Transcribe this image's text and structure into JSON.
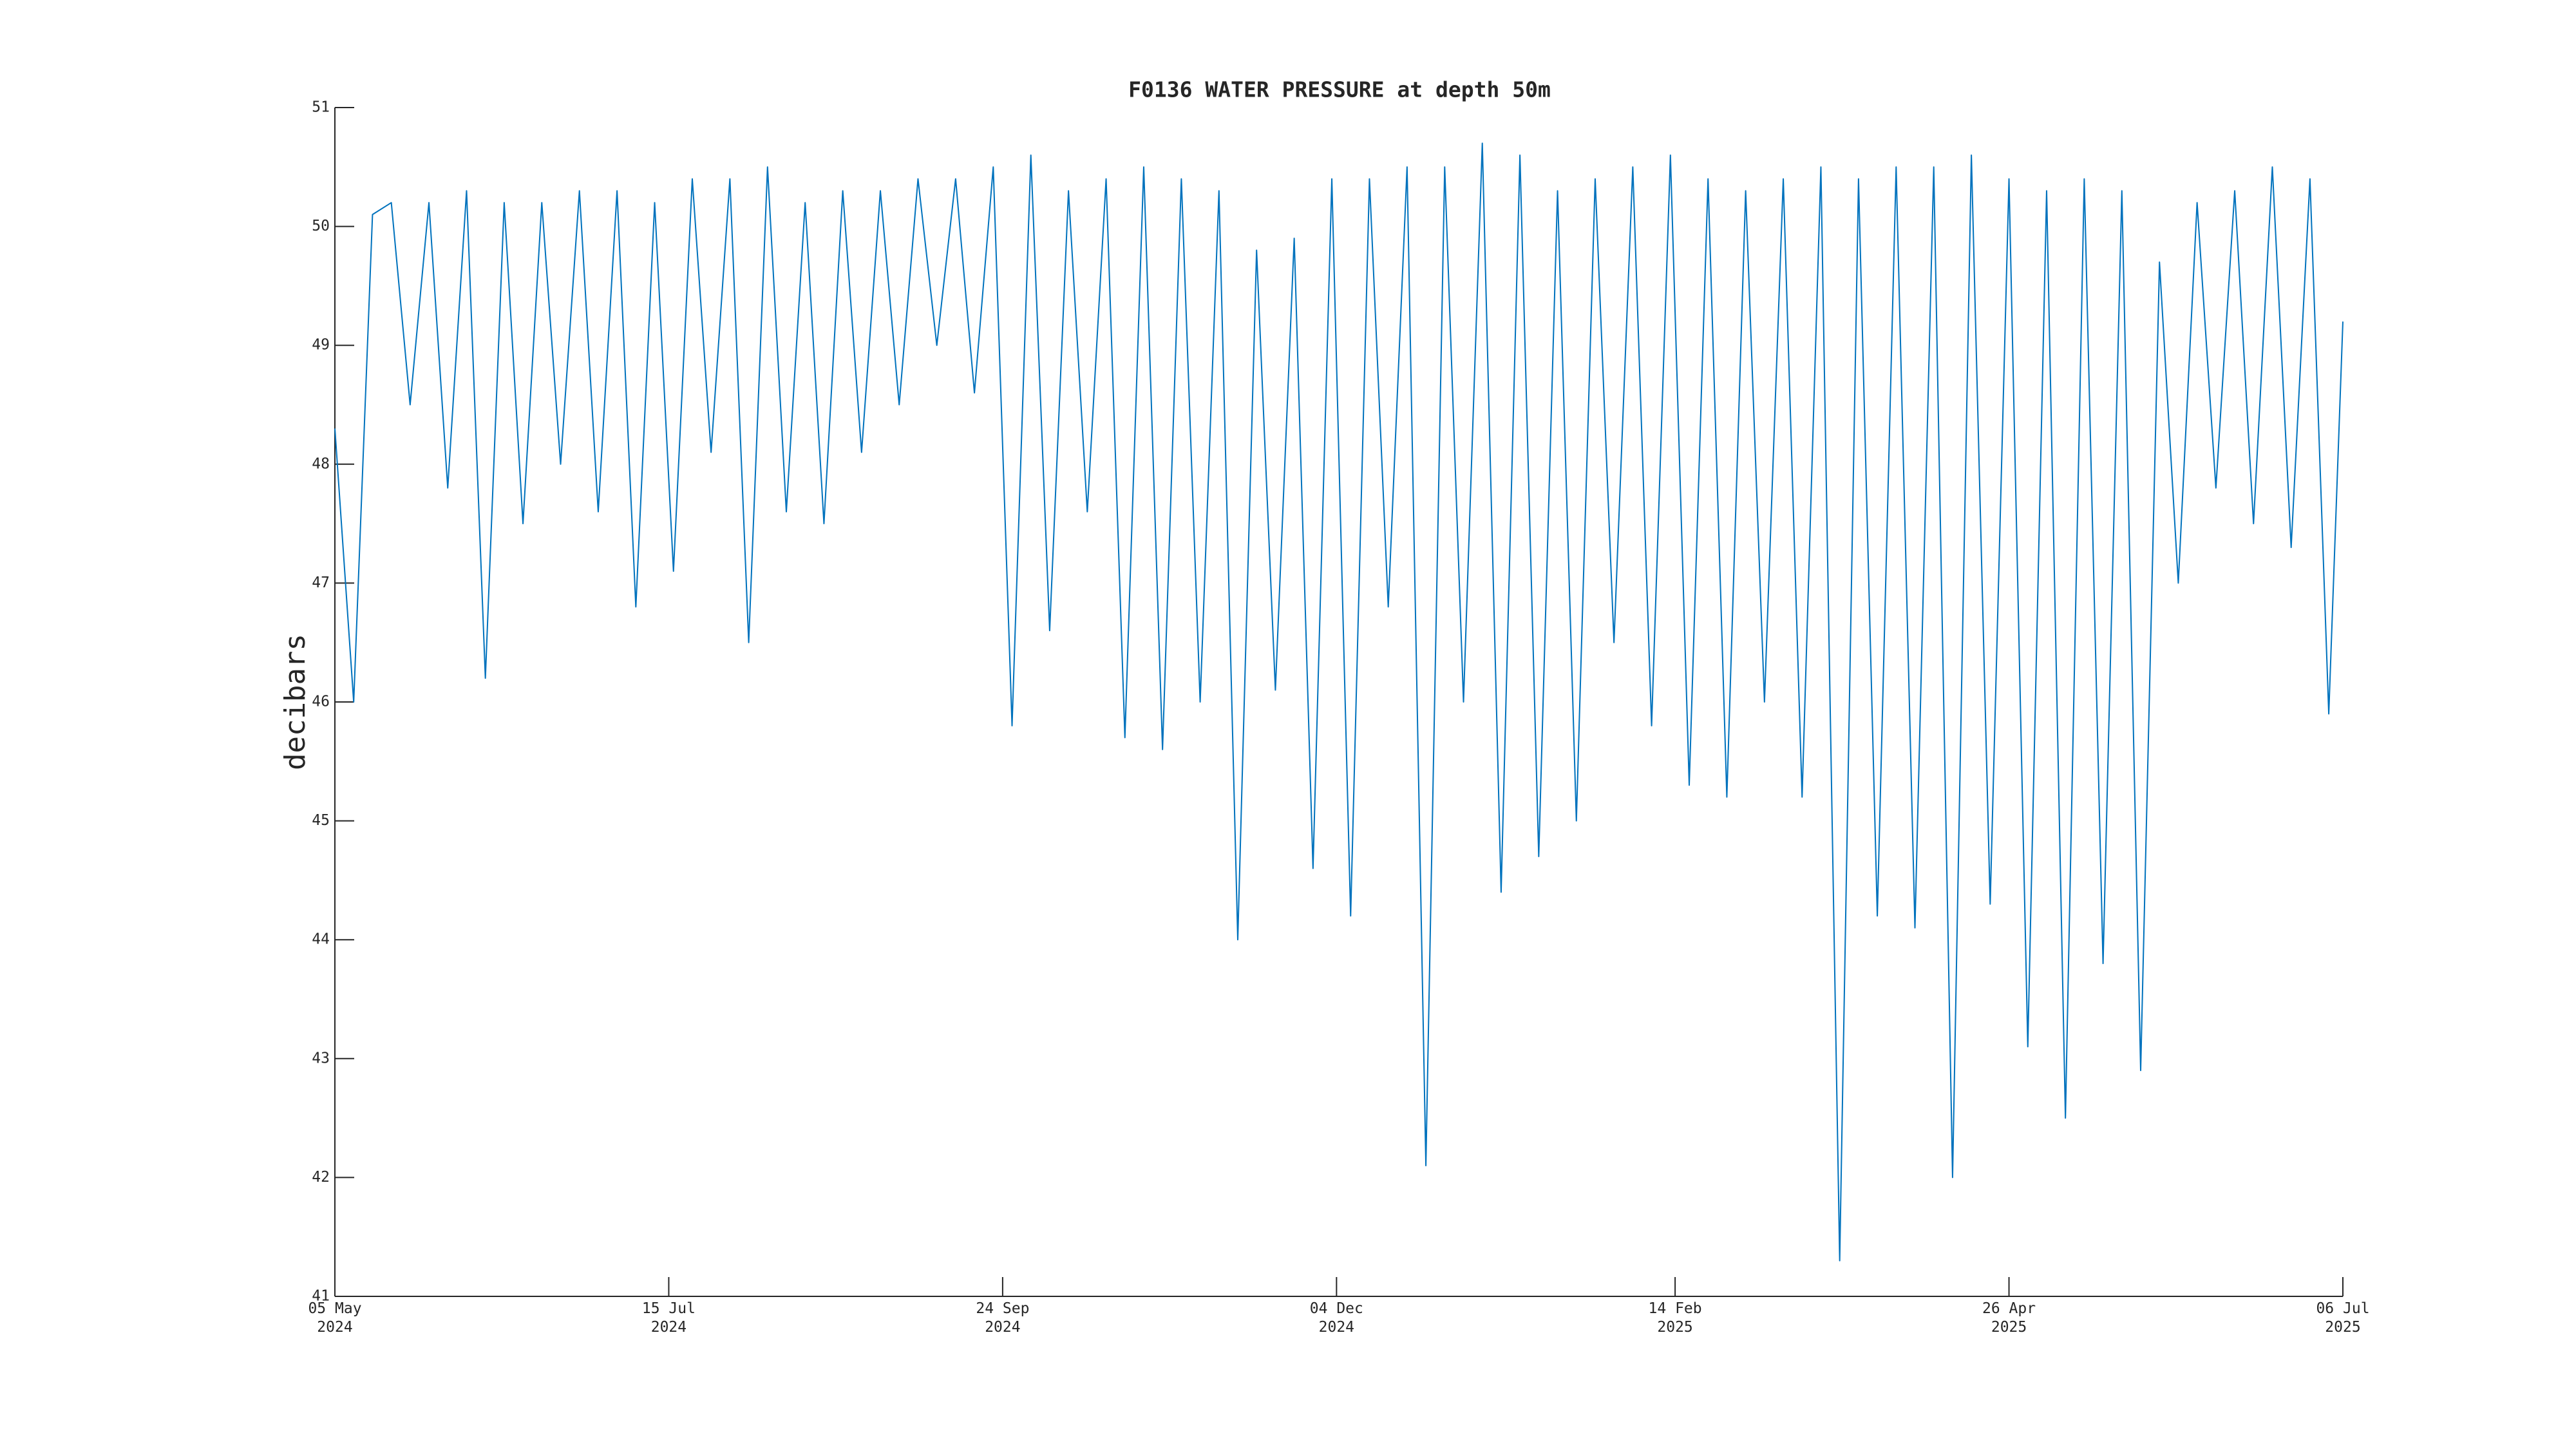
{
  "chart_data": {
    "type": "line",
    "title": "F0136 WATER PRESSURE at depth 50m",
    "ylabel": "decibars",
    "x": [
      "2024-05-05",
      "2024-05-09",
      "2024-05-13",
      "2024-05-17",
      "2024-05-21",
      "2024-05-25",
      "2024-05-29",
      "2024-06-02",
      "2024-06-06",
      "2024-06-10",
      "2024-06-14",
      "2024-06-18",
      "2024-06-22",
      "2024-06-26",
      "2024-06-30",
      "2024-07-04",
      "2024-07-08",
      "2024-07-12",
      "2024-07-16",
      "2024-07-20",
      "2024-07-24",
      "2024-07-28",
      "2024-08-01",
      "2024-08-05",
      "2024-08-09",
      "2024-08-13",
      "2024-08-17",
      "2024-08-21",
      "2024-08-25",
      "2024-08-29",
      "2024-09-02",
      "2024-09-06",
      "2024-09-10",
      "2024-09-14",
      "2024-09-18",
      "2024-09-22",
      "2024-09-26",
      "2024-09-30",
      "2024-10-04",
      "2024-10-08",
      "2024-10-12",
      "2024-10-16",
      "2024-10-20",
      "2024-10-24",
      "2024-10-28",
      "2024-11-01",
      "2024-11-05",
      "2024-11-09",
      "2024-11-13",
      "2024-11-17",
      "2024-11-21",
      "2024-11-25",
      "2024-11-29",
      "2024-12-03",
      "2024-12-07",
      "2024-12-11",
      "2024-12-15",
      "2024-12-19",
      "2024-12-23",
      "2024-12-27",
      "2024-12-31",
      "2025-01-04",
      "2025-01-08",
      "2025-01-12",
      "2025-01-16",
      "2025-01-20",
      "2025-01-24",
      "2025-01-28",
      "2025-02-01",
      "2025-02-05",
      "2025-02-09",
      "2025-02-13",
      "2025-02-17",
      "2025-02-21",
      "2025-02-25",
      "2025-03-01",
      "2025-03-05",
      "2025-03-09",
      "2025-03-13",
      "2025-03-17",
      "2025-03-21",
      "2025-03-25",
      "2025-03-29",
      "2025-04-02",
      "2025-04-06",
      "2025-04-10",
      "2025-04-14",
      "2025-04-18",
      "2025-04-22",
      "2025-04-26",
      "2025-04-30",
      "2025-05-04",
      "2025-05-08",
      "2025-05-12",
      "2025-05-16",
      "2025-05-20",
      "2025-05-24",
      "2025-05-28",
      "2025-06-01",
      "2025-06-05",
      "2025-06-09",
      "2025-06-13",
      "2025-06-17",
      "2025-06-21",
      "2025-06-25",
      "2025-06-29",
      "2025-07-03",
      "2025-07-06"
    ],
    "series": [
      {
        "name": "water pressure",
        "color": "#0072bd",
        "values": [
          48.3,
          46.0,
          50.1,
          50.2,
          48.5,
          50.2,
          47.8,
          50.3,
          46.2,
          50.2,
          47.5,
          50.2,
          48.0,
          50.3,
          47.6,
          50.3,
          46.8,
          50.2,
          47.1,
          50.4,
          48.1,
          50.4,
          46.5,
          50.5,
          47.6,
          50.2,
          47.5,
          50.3,
          48.1,
          50.3,
          48.5,
          50.4,
          49.0,
          50.4,
          48.6,
          50.5,
          45.8,
          50.6,
          46.6,
          50.3,
          47.6,
          50.4,
          45.7,
          50.5,
          45.6,
          50.4,
          46.0,
          50.3,
          44.0,
          49.8,
          46.1,
          49.9,
          44.6,
          50.4,
          44.2,
          50.4,
          46.8,
          50.5,
          42.1,
          50.5,
          46.0,
          50.7,
          44.4,
          50.6,
          44.7,
          50.3,
          45.0,
          50.4,
          46.5,
          50.5,
          45.8,
          50.6,
          45.3,
          50.4,
          45.2,
          50.3,
          46.0,
          50.4,
          45.2,
          50.5,
          41.3,
          50.4,
          44.2,
          50.5,
          44.1,
          50.5,
          42.0,
          50.6,
          44.3,
          50.4,
          43.1,
          50.3,
          42.5,
          50.4,
          43.8,
          50.3,
          42.9,
          49.7,
          47.0,
          50.2,
          47.8,
          50.3,
          47.5,
          50.5,
          47.3,
          50.4,
          45.9,
          49.2
        ]
      }
    ],
    "xlim": [
      "2024-05-05",
      "2025-07-06"
    ],
    "xticks": [
      {
        "value": "2024-05-05",
        "label": "05 May\n2024"
      },
      {
        "value": "2024-07-15",
        "label": "15 Jul\n2024"
      },
      {
        "value": "2024-09-24",
        "label": "24 Sep\n2024"
      },
      {
        "value": "2024-12-04",
        "label": "04 Dec\n2024"
      },
      {
        "value": "2025-02-14",
        "label": "14 Feb\n2025"
      },
      {
        "value": "2025-04-26",
        "label": "26 Apr\n2025"
      },
      {
        "value": "2025-07-06",
        "label": "06 Jul\n2025"
      }
    ],
    "ylim": [
      41,
      51
    ],
    "yticks": [
      41,
      42,
      43,
      44,
      45,
      46,
      47,
      48,
      49,
      50,
      51
    ],
    "grid": false
  }
}
